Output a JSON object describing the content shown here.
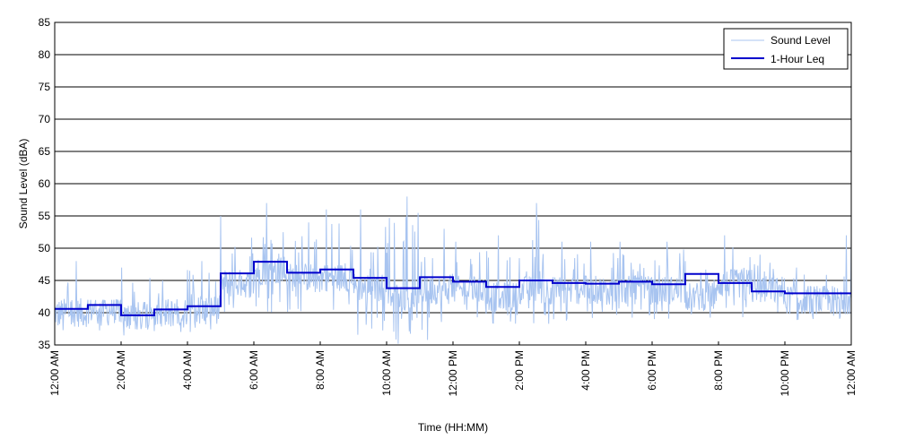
{
  "chart_data": {
    "type": "line",
    "title": "",
    "xlabel": "Time (HH:MM)",
    "ylabel": "Sound Level (dBA)",
    "ylim": [
      35,
      85
    ],
    "yticks": [
      35,
      40,
      45,
      50,
      55,
      60,
      65,
      70,
      75,
      80,
      85
    ],
    "xlim_hours": [
      0,
      24
    ],
    "xticks": [
      {
        "hour": 0,
        "label": "12:00 AM"
      },
      {
        "hour": 2,
        "label": "2:00 AM"
      },
      {
        "hour": 4,
        "label": "4:00 AM"
      },
      {
        "hour": 6,
        "label": "6:00 AM"
      },
      {
        "hour": 8,
        "label": "8:00 AM"
      },
      {
        "hour": 10,
        "label": "10:00 AM"
      },
      {
        "hour": 12,
        "label": "12:00 PM"
      },
      {
        "hour": 14,
        "label": "2:00 PM"
      },
      {
        "hour": 16,
        "label": "4:00 PM"
      },
      {
        "hour": 18,
        "label": "6:00 PM"
      },
      {
        "hour": 20,
        "label": "8:00 PM"
      },
      {
        "hour": 22,
        "label": "10:00 PM"
      },
      {
        "hour": 24,
        "label": "12:00 AM"
      }
    ],
    "grid": "horizontal",
    "legend": "top-right",
    "series": [
      {
        "name": "Sound Level",
        "color": "#a8c4f0",
        "style": "thin-line",
        "hourly_mean": [
          40.0,
          40.5,
          39.5,
          40.0,
          40.5,
          44.5,
          46.5,
          45.5,
          45.5,
          44.0,
          42.5,
          43.5,
          43.5,
          42.5,
          43.5,
          43.5,
          43.5,
          43.5,
          43.5,
          42.5,
          44.5,
          43.5,
          42.0,
          42.0
        ],
        "hourly_peak": [
          48,
          42,
          47,
          45,
          48,
          55,
          57,
          54,
          56,
          56,
          58,
          53,
          51,
          52,
          57,
          51,
          51,
          51,
          51,
          48,
          52,
          49,
          47,
          52
        ],
        "hourly_min": [
          37,
          37,
          36,
          37,
          37,
          39,
          40,
          40,
          39,
          36,
          35,
          35,
          38,
          38,
          38,
          38,
          39,
          39,
          39,
          39,
          39,
          38,
          38,
          38
        ]
      },
      {
        "name": "1-Hour Leq",
        "color": "#0000cc",
        "style": "step",
        "values": [
          40.6,
          41.2,
          39.6,
          40.5,
          41.0,
          46.1,
          47.9,
          46.2,
          46.7,
          45.4,
          43.8,
          45.5,
          44.8,
          44.0,
          45.0,
          44.6,
          44.5,
          44.8,
          44.4,
          46.0,
          44.6,
          43.3,
          43.0,
          43.0
        ]
      }
    ]
  }
}
